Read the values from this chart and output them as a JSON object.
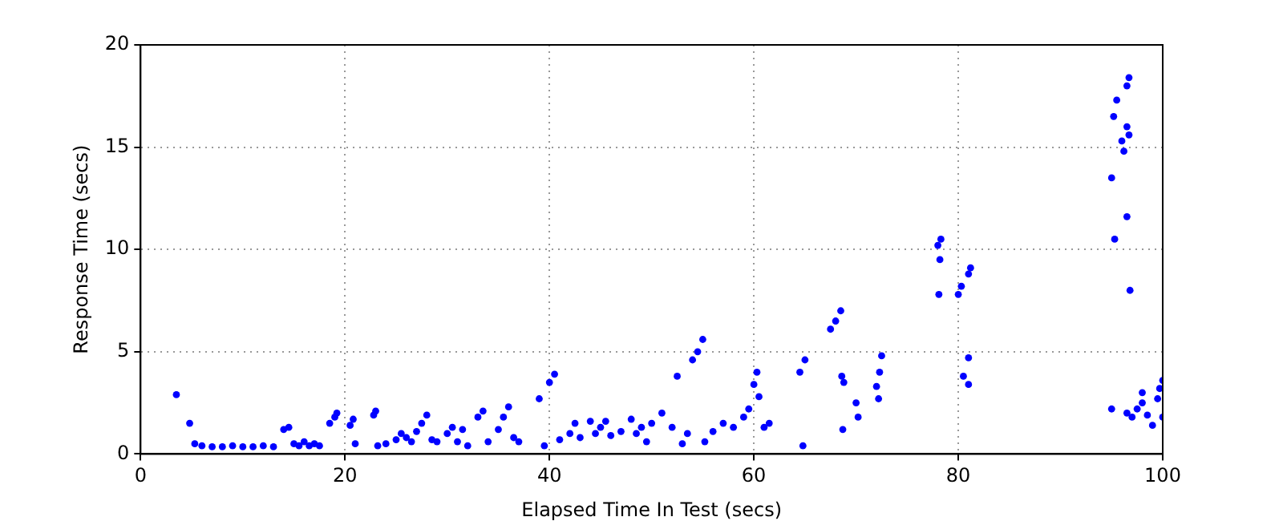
{
  "chart_data": {
    "type": "scatter",
    "xlabel": "Elapsed Time In Test (secs)",
    "ylabel": "Response Time (secs)",
    "xlim": [
      0,
      100
    ],
    "ylim": [
      0,
      20
    ],
    "xticks": [
      0,
      20,
      40,
      60,
      80,
      100
    ],
    "yticks": [
      0,
      5,
      10,
      15,
      20
    ],
    "grid": true,
    "marker": "circle",
    "series": [
      {
        "color": "#0000ff",
        "x": [
          3.5,
          4.8,
          5.3,
          6,
          7,
          8,
          9,
          10,
          11,
          12,
          13,
          14,
          14.5,
          15,
          15.5,
          16,
          16.5,
          17,
          17.5,
          18.5,
          19,
          19.2,
          20.5,
          20.8,
          21,
          22.8,
          23,
          23.2,
          24,
          25,
          25.5,
          26,
          26.5,
          27,
          27.5,
          28,
          28.5,
          29,
          30,
          30.5,
          31,
          31.5,
          32,
          33,
          33.5,
          34,
          35,
          35.5,
          36,
          36.5,
          37,
          39,
          39.5,
          40,
          40.5,
          41,
          42,
          42.5,
          43,
          44,
          44.5,
          45,
          45.5,
          46,
          47,
          48,
          48.5,
          49,
          49.5,
          50,
          51,
          52,
          52.5,
          53,
          53.5,
          54,
          54.5,
          55,
          55.2,
          56,
          57,
          58,
          59,
          59.5,
          60,
          60.3,
          60.5,
          61,
          61.5,
          64.5,
          65,
          64.8,
          67.5,
          68,
          68.5,
          68.6,
          68.8,
          68.7,
          70,
          70.2,
          72,
          72.3,
          72.5,
          72.2,
          78,
          78.2,
          78.1,
          78.3,
          80,
          80.3,
          80.5,
          81,
          81.2,
          81,
          81,
          95,
          95.2,
          95.5,
          95.3,
          95,
          96,
          96.2,
          96.5,
          96.7,
          96.5,
          96.7,
          96.5,
          96.8,
          96.5,
          97,
          97.5,
          98,
          98,
          98.5,
          99,
          99.5,
          99.7,
          100,
          100
        ],
        "values": [
          2.9,
          1.5,
          0.5,
          0.4,
          0.35,
          0.35,
          0.4,
          0.35,
          0.35,
          0.4,
          0.35,
          1.2,
          1.3,
          0.5,
          0.4,
          0.6,
          0.4,
          0.5,
          0.4,
          1.5,
          1.8,
          2.0,
          1.4,
          1.7,
          0.5,
          1.9,
          2.1,
          0.4,
          0.5,
          0.7,
          1.0,
          0.8,
          0.6,
          1.1,
          1.5,
          1.9,
          0.7,
          0.6,
          1.0,
          1.3,
          0.6,
          1.2,
          0.4,
          1.8,
          2.1,
          0.6,
          1.2,
          1.8,
          2.3,
          0.8,
          0.6,
          2.7,
          0.4,
          3.5,
          3.9,
          0.7,
          1.0,
          1.5,
          0.8,
          1.6,
          1.0,
          1.3,
          1.6,
          0.9,
          1.1,
          1.7,
          1.0,
          1.3,
          0.6,
          1.5,
          2.0,
          1.3,
          3.8,
          0.5,
          1.0,
          4.6,
          5.0,
          5.6,
          0.6,
          1.1,
          1.5,
          1.3,
          1.8,
          2.2,
          3.4,
          4.0,
          2.8,
          1.3,
          1.5,
          4.0,
          4.6,
          0.4,
          6.1,
          6.5,
          7.0,
          3.8,
          3.5,
          1.2,
          2.5,
          1.8,
          3.3,
          4.0,
          4.8,
          2.7,
          10.2,
          9.5,
          7.8,
          10.5,
          7.8,
          8.2,
          3.8,
          8.8,
          9.1,
          3.4,
          4.7,
          13.5,
          16.5,
          17.3,
          10.5,
          2.2,
          15.3,
          14.8,
          16.0,
          15.6,
          18.0,
          18.4,
          11.6,
          8.0,
          2.0,
          1.8,
          2.2,
          2.5,
          3.0,
          1.9,
          1.4,
          2.7,
          3.2,
          3.6,
          1.8
        ]
      }
    ]
  }
}
